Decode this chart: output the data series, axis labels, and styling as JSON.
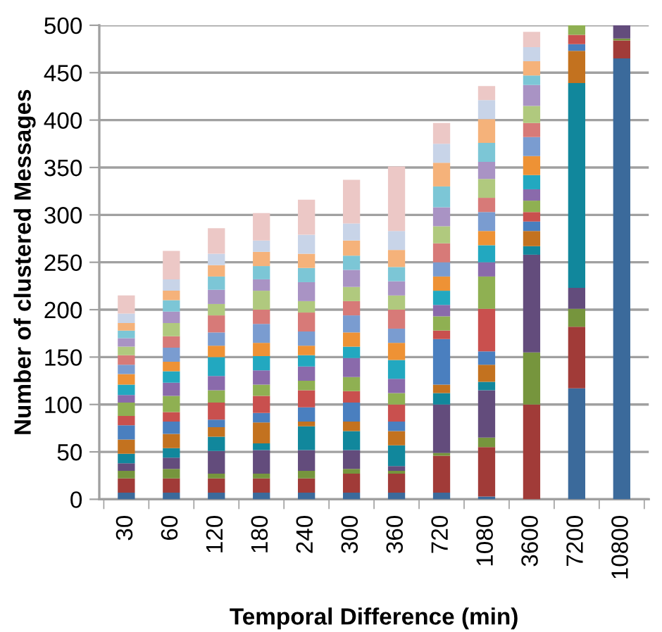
{
  "chart_data": {
    "type": "bar",
    "stacked": true,
    "xlabel": "Temporal Difference (min)",
    "ylabel": "Number of clustered Messages",
    "categories": [
      "30",
      "60",
      "120",
      "180",
      "240",
      "300",
      "360",
      "720",
      "1080",
      "3600",
      "7200",
      "10800"
    ],
    "ylim": [
      0,
      500
    ],
    "yticks": [
      0,
      50,
      100,
      150,
      200,
      250,
      300,
      350,
      400,
      450,
      500
    ],
    "grid": "y",
    "legend": false,
    "series": [
      {
        "color": "#3b6a9b",
        "values": [
          7,
          7,
          7,
          7,
          7,
          7,
          7,
          7,
          3,
          null,
          117,
          465
        ]
      },
      {
        "color": "#a13b38",
        "values": [
          15,
          15,
          15,
          15,
          15,
          20,
          20,
          39,
          52,
          100,
          65,
          19
        ]
      },
      {
        "color": "#76953d",
        "values": [
          8,
          10,
          5,
          5,
          8,
          5,
          3,
          3,
          10,
          55,
          19,
          2
        ]
      },
      {
        "color": "#634c7c",
        "values": [
          8,
          12,
          24,
          25,
          22,
          20,
          5,
          51,
          50,
          103,
          22,
          14
        ]
      },
      {
        "color": "#11879c",
        "values": [
          10,
          10,
          15,
          7,
          25,
          20,
          22,
          12,
          9,
          9,
          216,
          null
        ]
      },
      {
        "color": "#c3721f",
        "values": [
          15,
          15,
          10,
          22,
          5,
          10,
          15,
          9,
          18,
          16,
          34,
          null
        ]
      },
      {
        "color": "#4a7fbf",
        "values": [
          15,
          13,
          8,
          10,
          15,
          20,
          10,
          48,
          14,
          10,
          7,
          null
        ]
      },
      {
        "color": "#c9504e",
        "values": [
          10,
          10,
          18,
          18,
          18,
          12,
          18,
          9,
          45,
          10,
          10,
          null
        ]
      },
      {
        "color": "#8fb052",
        "values": [
          14,
          17,
          13,
          12,
          10,
          15,
          12,
          15,
          34,
          12,
          10,
          null
        ]
      },
      {
        "color": "#8a6aab",
        "values": [
          8,
          14,
          15,
          15,
          15,
          20,
          15,
          12,
          15,
          12,
          null,
          null
        ]
      },
      {
        "color": "#22a8c0",
        "values": [
          11,
          12,
          20,
          15,
          12,
          12,
          20,
          15,
          18,
          15,
          null,
          null
        ]
      },
      {
        "color": "#ee9235",
        "values": [
          11,
          10,
          12,
          14,
          10,
          15,
          18,
          15,
          15,
          20,
          null,
          null
        ]
      },
      {
        "color": "#7a9cd0",
        "values": [
          10,
          15,
          14,
          20,
          15,
          18,
          15,
          15,
          20,
          20,
          null,
          null
        ]
      },
      {
        "color": "#d77a78",
        "values": [
          10,
          12,
          18,
          15,
          20,
          15,
          20,
          20,
          15,
          15,
          null,
          null
        ]
      },
      {
        "color": "#b0c97e",
        "values": [
          9,
          14,
          12,
          20,
          12,
          15,
          15,
          18,
          20,
          18,
          null,
          null
        ]
      },
      {
        "color": "#a993c4",
        "values": [
          9,
          12,
          15,
          12,
          20,
          18,
          15,
          20,
          18,
          22,
          null,
          null
        ]
      },
      {
        "color": "#7cc6d6",
        "values": [
          8,
          12,
          14,
          14,
          15,
          15,
          15,
          22,
          20,
          10,
          null,
          null
        ]
      },
      {
        "color": "#f5b27a",
        "values": [
          8,
          10,
          12,
          15,
          15,
          16,
          18,
          25,
          25,
          15,
          null,
          null
        ]
      },
      {
        "color": "#c8d4e8",
        "values": [
          10,
          12,
          12,
          12,
          20,
          18,
          20,
          20,
          20,
          15,
          null,
          null
        ]
      },
      {
        "color": "#ecc8c6",
        "values": [
          19,
          30,
          27,
          29,
          37,
          46,
          68,
          22,
          15,
          16,
          null,
          null
        ]
      }
    ]
  }
}
